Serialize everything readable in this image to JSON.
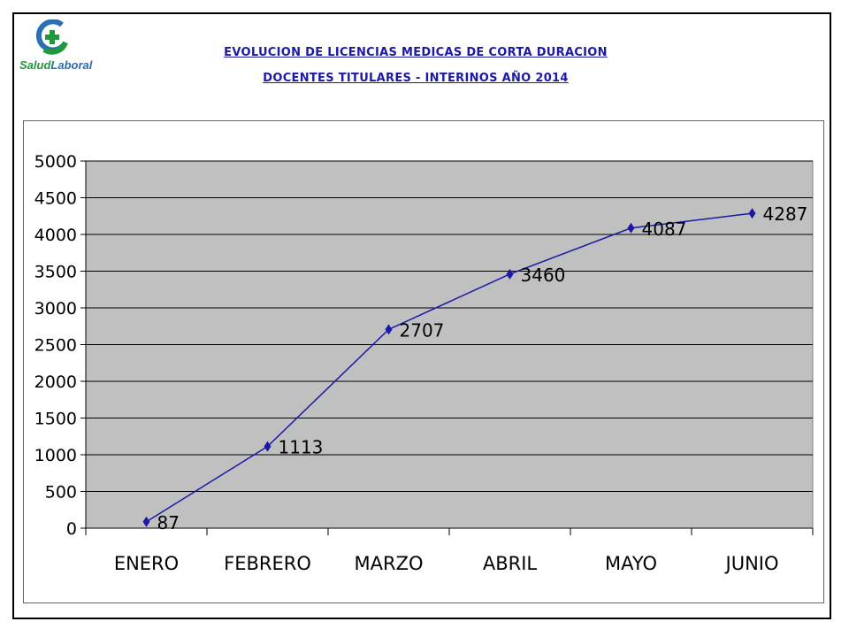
{
  "logo": {
    "text_part1": "Salud",
    "text_part2": "Laboral"
  },
  "header": {
    "title_line1": "EVOLUCION DE LICENCIAS MEDICAS DE CORTA DURACION",
    "title_line2": "DOCENTES TITULARES - INTERINOS AÑO 2014"
  },
  "colors": {
    "title": "#1a1aa6",
    "line": "#1a1aa6",
    "plot_bg": "#c0c0c0",
    "grid": "#000000"
  },
  "chart_data": {
    "type": "line",
    "title": "EVOLUCION DE LICENCIAS MEDICAS DE CORTA DURACION DOCENTES TITULARES - INTERINOS AÑO 2014",
    "categories": [
      "ENERO",
      "FEBRERO",
      "MARZO",
      "ABRIL",
      "MAYO",
      "JUNIO"
    ],
    "values": [
      87,
      1113,
      2707,
      3460,
      4087,
      4287
    ],
    "ylim": [
      0,
      5000
    ],
    "yticks": [
      0,
      500,
      1000,
      1500,
      2000,
      2500,
      3000,
      3500,
      4000,
      4500,
      5000
    ],
    "xlabel": "",
    "ylabel": "",
    "grid": true,
    "legend": "none",
    "marker": "diamond"
  }
}
